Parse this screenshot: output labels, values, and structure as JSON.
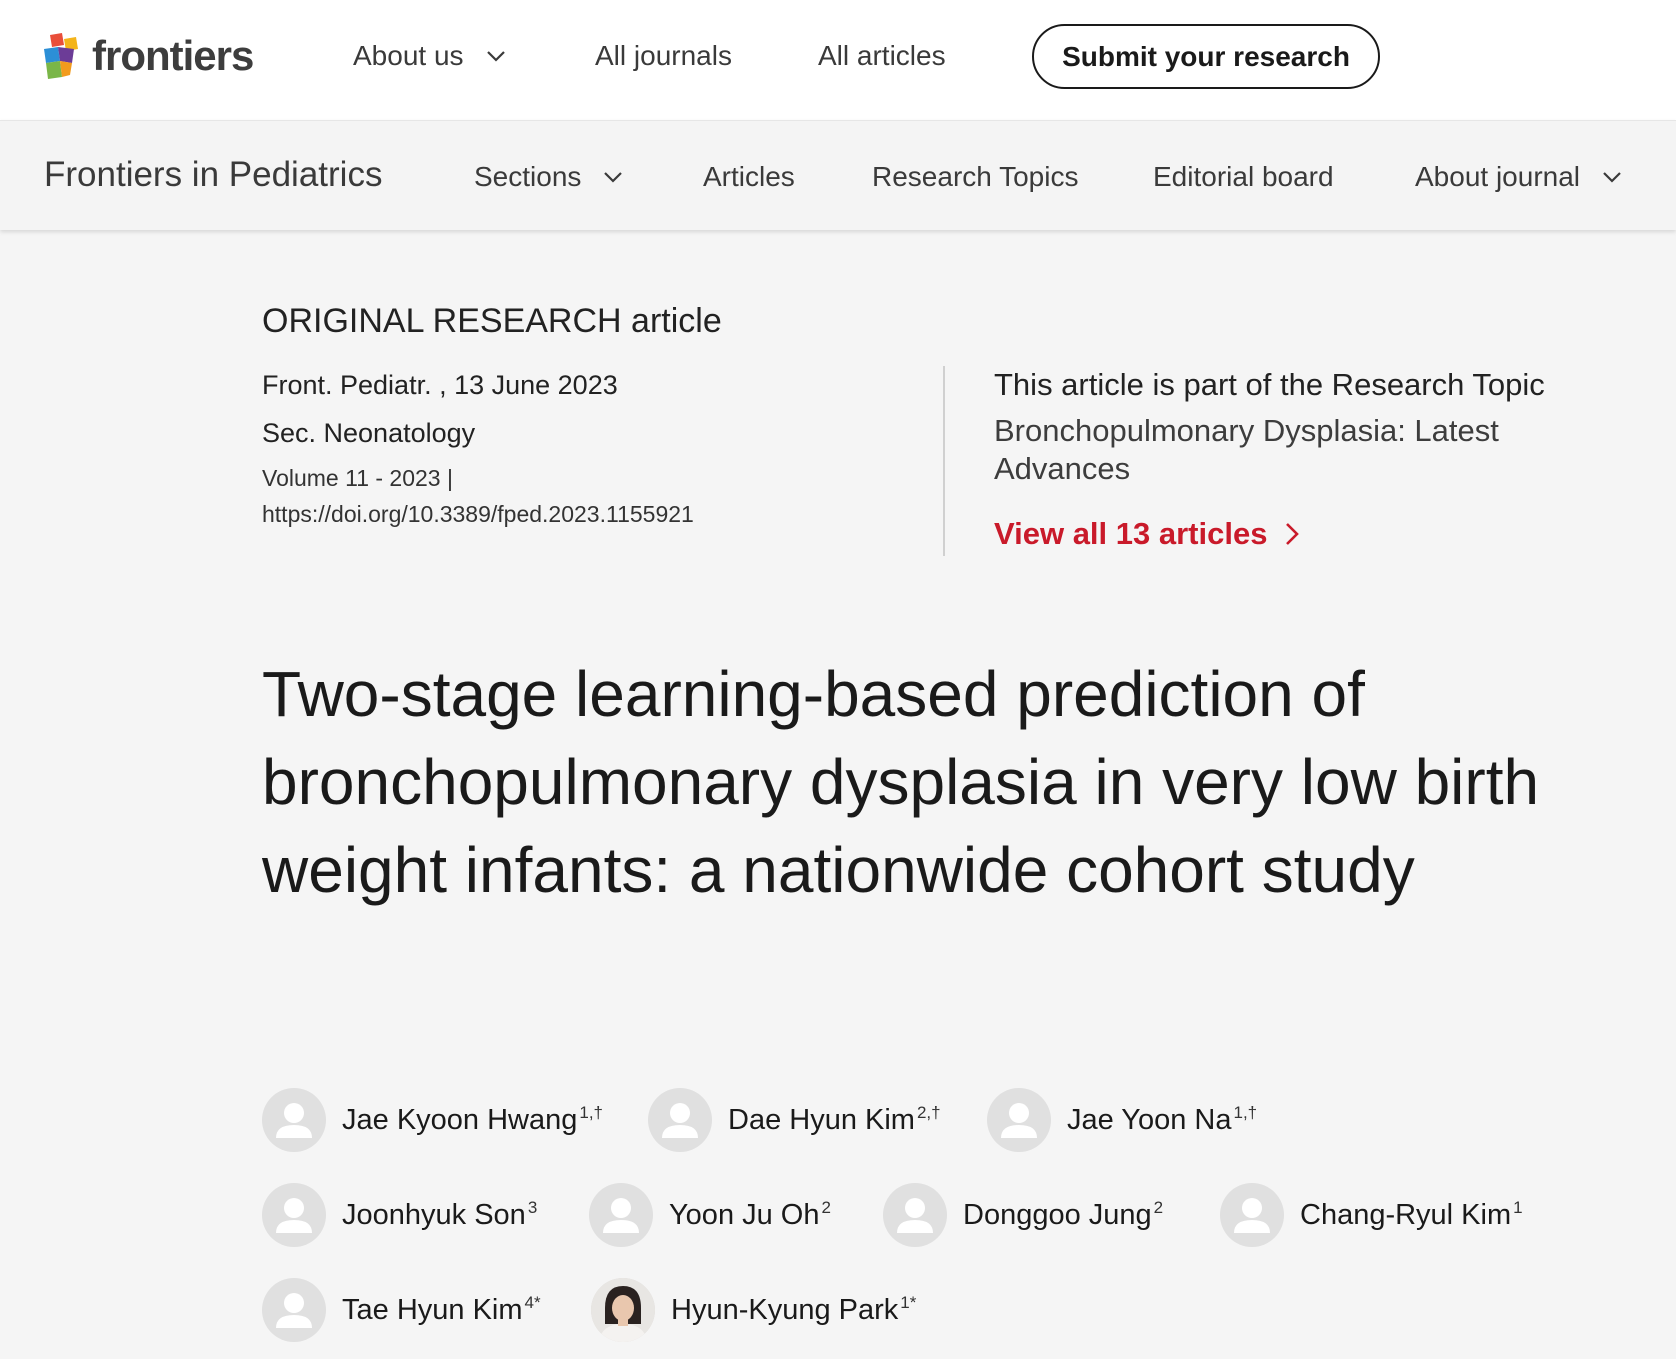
{
  "header": {
    "logo_text": "frontiers",
    "nav": [
      {
        "label": "About us",
        "has_dropdown": true
      },
      {
        "label": "All journals",
        "has_dropdown": false
      },
      {
        "label": "All articles",
        "has_dropdown": false
      }
    ],
    "submit_label": "Submit your research"
  },
  "journal_bar": {
    "title": "Frontiers in Pediatrics",
    "nav": [
      {
        "label": "Sections",
        "has_dropdown": true
      },
      {
        "label": "Articles",
        "has_dropdown": false
      },
      {
        "label": "Research Topics",
        "has_dropdown": false
      },
      {
        "label": "Editorial board",
        "has_dropdown": false
      },
      {
        "label": "About journal",
        "has_dropdown": true
      }
    ]
  },
  "article": {
    "type": "ORIGINAL RESEARCH article",
    "journal_date": "Front. Pediatr. , 13 June 2023",
    "section": "Sec. Neonatology",
    "volume": "Volume 11 - 2023 |",
    "doi": "https://doi.org/10.3389/fped.2023.1155921",
    "title": "Two-stage learning-based prediction of bronchopulmonary dysplasia in very low birth weight infants: a nationwide cohort study"
  },
  "research_topic": {
    "label": "This article is part of the Research Topic",
    "topic": "Bronchopulmonary Dysplasia: Latest Advances",
    "view_all": "View all 13 articles"
  },
  "authors": [
    {
      "name": "Jae Kyoon Hwang",
      "sup": "1,†",
      "photo": false
    },
    {
      "name": "Dae Hyun Kim",
      "sup": "2,†",
      "photo": false
    },
    {
      "name": "Jae Yoon Na",
      "sup": "1,†",
      "photo": false
    },
    {
      "name": "Joonhyuk Son",
      "sup": "3",
      "photo": false
    },
    {
      "name": "Yoon Ju Oh",
      "sup": "2",
      "photo": false
    },
    {
      "name": "Donggoo Jung",
      "sup": "2",
      "photo": false
    },
    {
      "name": "Chang-Ryul Kim",
      "sup": "1",
      "photo": false
    },
    {
      "name": "Tae Hyun Kim",
      "sup": "4*",
      "photo": false
    },
    {
      "name": "Hyun-Kyung Park",
      "sup": "1*",
      "photo": true
    }
  ],
  "colors": {
    "accent_red": "#c91a2a",
    "page_bg": "#f5f5f5",
    "header_bg": "#ffffff"
  }
}
